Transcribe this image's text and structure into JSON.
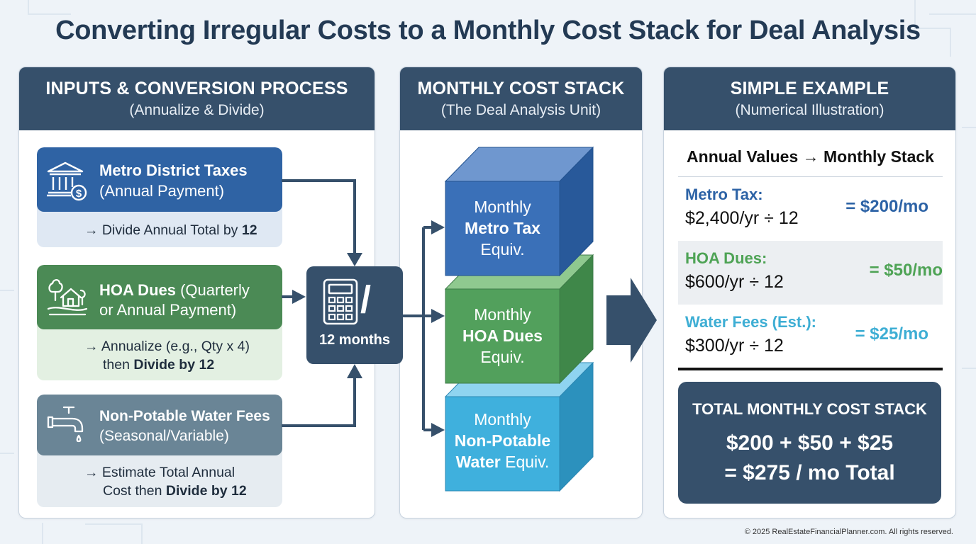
{
  "title": "Converting Irregular Costs to a Monthly Cost Stack for Deal Analysis",
  "colors": {
    "navy": "#36506b",
    "blue": "#2f63a4",
    "green": "#4b8a55",
    "slate": "#6a8596",
    "green_text": "#4ea355",
    "blue_text": "#2d63a6",
    "cyan_text": "#3eaed4"
  },
  "panels": {
    "inputs": {
      "title": "INPUTS & CONVERSION PROCESS",
      "subtitle": "(Annualize & Divide)"
    },
    "stack": {
      "title": "MONTHLY COST STACK",
      "subtitle": "(The Deal Analysis Unit)"
    },
    "example": {
      "title": "SIMPLE EXAMPLE",
      "subtitle": "(Numerical Illustration)"
    }
  },
  "inputs": {
    "metro": {
      "icon": "bank-dollar-icon",
      "name": "Metro District Taxes",
      "freq": "(Annual Payment)",
      "step_prefix": "→ Divide Annual Total by ",
      "step_bold": "12"
    },
    "hoa": {
      "icon": "house-trees-icon",
      "name": "HOA Dues",
      "freq_a": " (Quarterly",
      "freq_b": "or Annual Payment)",
      "step_line1": "→ Annualize (e.g., Qty x 4)",
      "step_line2_prefix": "then ",
      "step_line2_bold": "Divide by 12"
    },
    "water": {
      "icon": "faucet-icon",
      "name": "Non-Potable Water Fees",
      "freq": "(Seasonal/Variable)",
      "step_line1": "→ Estimate Total Annual",
      "step_line2_prefix": "Cost then ",
      "step_line2_bold": "Divide by 12"
    }
  },
  "calculator": {
    "icon": "calculator-icon",
    "slash": "/",
    "label": "12 months"
  },
  "stack": {
    "metro": {
      "pre": "Monthly",
      "bold": "Metro Tax",
      "post": "Equiv."
    },
    "hoa": {
      "pre": "Monthly",
      "bold": "HOA Dues",
      "post": "Equiv."
    },
    "water": {
      "pre": "Monthly",
      "bold1": "Non-Potable",
      "bold2": "Water",
      "post": " Equiv."
    }
  },
  "example": {
    "header": "Annual Values → Monthly Stack",
    "rows": [
      {
        "label": "Metro Tax:",
        "calc": "$2,400/yr ÷ 12",
        "result": "= $200/mo"
      },
      {
        "label": "HOA Dues:",
        "calc": "$600/yr ÷ 12",
        "result": "= $50/mo"
      },
      {
        "label": "Water Fees (Est.):",
        "calc": "$300/yr ÷ 12",
        "result": "= $25/mo"
      }
    ],
    "total": {
      "title": "TOTAL MONTHLY COST STACK",
      "line1": "$200 + $50 + $25",
      "line2": "= $275 / mo Total"
    }
  },
  "copyright": "© 2025 RealEstateFinancialPlanner.com. All rights reserved."
}
